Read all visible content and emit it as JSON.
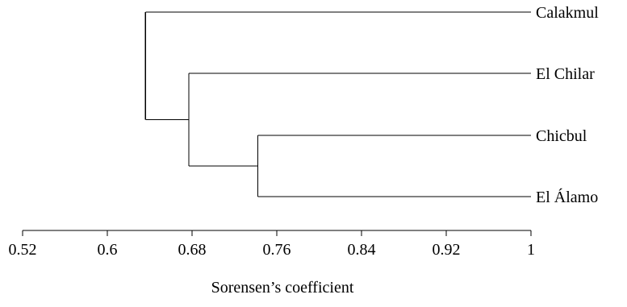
{
  "chart_data": {
    "type": "dendrogram",
    "title": "",
    "xlabel": "Sorensen’s coefficient",
    "ylabel": "",
    "xlim": [
      0.52,
      1.0
    ],
    "ticks": [
      "0.52",
      "0.6",
      "0.68",
      "0.76",
      "0.84",
      "0.92",
      "1"
    ],
    "tick_values": [
      0.52,
      0.6,
      0.68,
      0.76,
      0.84,
      0.92,
      1.0
    ],
    "leaves": [
      "Calakmul",
      "El Chilar",
      "Chicbul",
      "El Álamo"
    ],
    "merges": [
      {
        "members": [
          "Chicbul",
          "El Álamo"
        ],
        "similarity": 0.742
      },
      {
        "members": [
          "El Chilar",
          "Chicbul + El Álamo"
        ],
        "similarity": 0.677
      },
      {
        "members": [
          "Calakmul",
          "El Chilar + Chicbul + El Álamo"
        ],
        "similarity": 0.636
      }
    ],
    "grid": false,
    "legend": "none"
  }
}
